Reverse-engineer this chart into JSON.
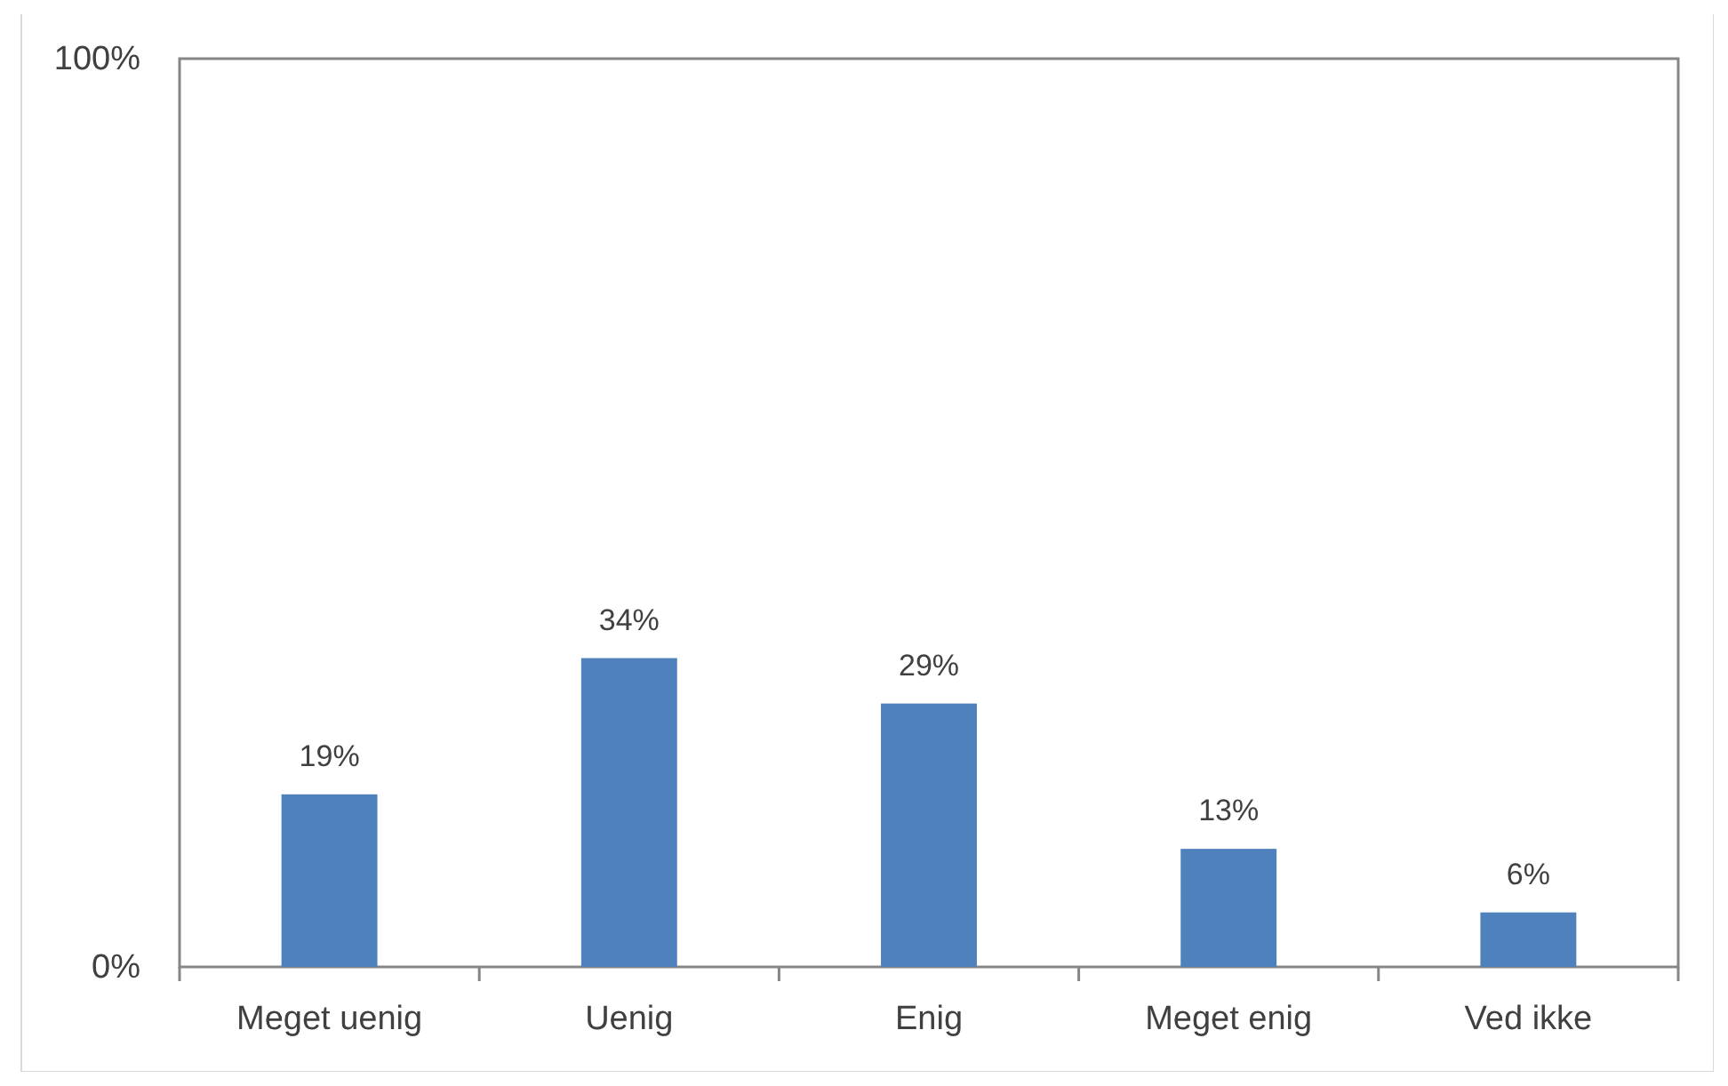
{
  "chart_data": {
    "type": "bar",
    "categories": [
      "Meget uenig",
      "Uenig",
      "Enig",
      "Meget enig",
      "Ved ikke"
    ],
    "values": [
      19,
      34,
      29,
      13,
      6
    ],
    "value_labels": [
      "19%",
      "34%",
      "29%",
      "13%",
      "6%"
    ],
    "color": "#4f81bd",
    "ylim": [
      0,
      100
    ],
    "yticks": [
      {
        "value": 0,
        "label": "0%"
      },
      {
        "value": 100,
        "label": "100%"
      }
    ]
  }
}
